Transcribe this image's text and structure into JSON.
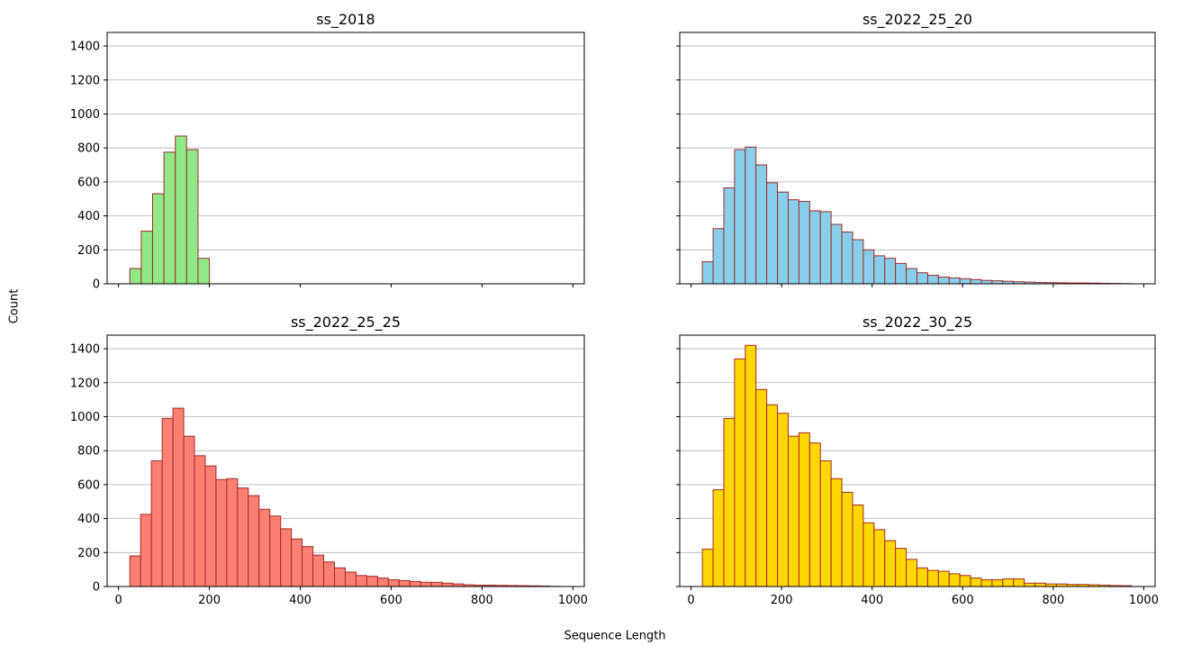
{
  "figure": {
    "xlabel": "Sequence Length",
    "ylabel": "Count"
  },
  "chart_data": [
    {
      "type": "bar",
      "title": "ss_2018",
      "color": "#90e887",
      "edge_color": "#a52a2a",
      "bin_edges": [
        25,
        50,
        75,
        100,
        125,
        150,
        175,
        200
      ],
      "values": [
        90,
        310,
        530,
        775,
        870,
        790,
        150
      ],
      "xlim": [
        -25,
        1025
      ],
      "ylim": [
        0,
        1480
      ],
      "xticks": [
        0,
        200,
        400,
        600,
        800,
        1000
      ],
      "yticks": [
        0,
        200,
        400,
        600,
        800,
        1000,
        1200,
        1400
      ],
      "show_xtick_labels": false,
      "show_ytick_labels": true,
      "grid": "y"
    },
    {
      "type": "bar",
      "title": "ss_2022_25_20",
      "color": "#87ceeb",
      "edge_color": "#a52a2a",
      "bin_start": 25,
      "bin_width": 23.7,
      "values": [
        130,
        325,
        565,
        790,
        805,
        700,
        595,
        540,
        495,
        485,
        430,
        425,
        350,
        305,
        260,
        200,
        165,
        150,
        120,
        90,
        65,
        50,
        40,
        35,
        30,
        25,
        20,
        18,
        15,
        12,
        10,
        8,
        7,
        6,
        5,
        5,
        4,
        3,
        2,
        1
      ],
      "xlim": [
        -25,
        1025
      ],
      "ylim": [
        0,
        1480
      ],
      "xticks": [
        0,
        200,
        400,
        600,
        800,
        1000
      ],
      "yticks": [
        0,
        200,
        400,
        600,
        800,
        1000,
        1200,
        1400
      ],
      "show_xtick_labels": false,
      "show_ytick_labels": false,
      "grid": "y"
    },
    {
      "type": "bar",
      "title": "ss_2022_25_25",
      "color": "#fa8072",
      "edge_color": "#a52a2a",
      "bin_start": 25,
      "bin_width": 23.7,
      "values": [
        180,
        425,
        740,
        990,
        1050,
        885,
        770,
        710,
        630,
        635,
        580,
        535,
        455,
        415,
        340,
        280,
        235,
        185,
        145,
        110,
        85,
        65,
        60,
        50,
        40,
        35,
        30,
        25,
        25,
        20,
        15,
        10,
        8,
        8,
        7,
        6,
        5,
        4,
        3,
        1
      ],
      "xlim": [
        -25,
        1025
      ],
      "ylim": [
        0,
        1480
      ],
      "xticks": [
        0,
        200,
        400,
        600,
        800,
        1000
      ],
      "yticks": [
        0,
        200,
        400,
        600,
        800,
        1000,
        1200,
        1400
      ],
      "show_xtick_labels": true,
      "show_ytick_labels": true,
      "grid": "y"
    },
    {
      "type": "bar",
      "title": "ss_2022_30_25",
      "color": "#ffd700",
      "edge_color": "#a52a2a",
      "bin_start": 25,
      "bin_width": 23.7,
      "values": [
        220,
        570,
        990,
        1340,
        1420,
        1160,
        1070,
        1020,
        885,
        905,
        845,
        740,
        635,
        555,
        480,
        375,
        335,
        270,
        225,
        160,
        110,
        95,
        90,
        75,
        65,
        50,
        40,
        40,
        45,
        45,
        20,
        20,
        15,
        15,
        12,
        12,
        10,
        8,
        6,
        5
      ],
      "xlim": [
        -25,
        1025
      ],
      "ylim": [
        0,
        1480
      ],
      "xticks": [
        0,
        200,
        400,
        600,
        800,
        1000
      ],
      "yticks": [
        0,
        200,
        400,
        600,
        800,
        1000,
        1200,
        1400
      ],
      "show_xtick_labels": true,
      "show_ytick_labels": false,
      "grid": "y"
    }
  ]
}
